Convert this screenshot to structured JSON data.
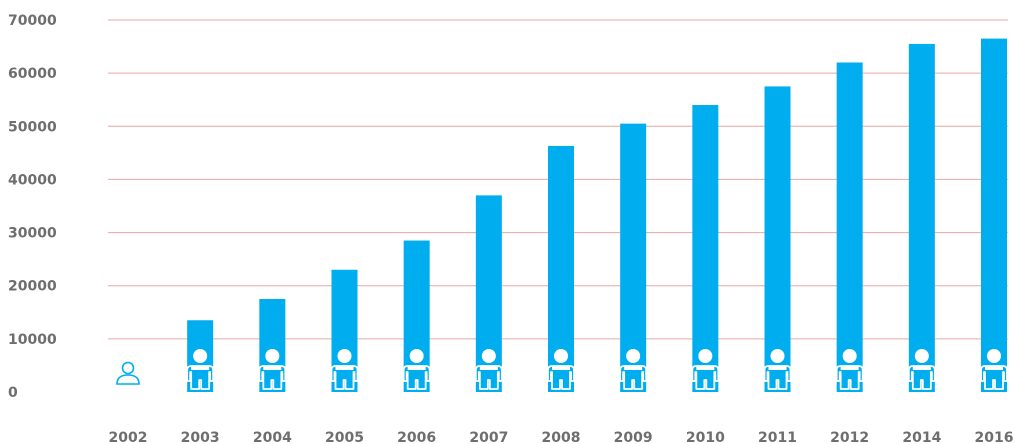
{
  "chart_data": {
    "type": "bar",
    "categories": [
      "2002",
      "2003",
      "2004",
      "2005",
      "2006",
      "2007",
      "2008",
      "2009",
      "2010",
      "2011",
      "2012",
      "2014",
      "2016"
    ],
    "values": [
      0,
      13500,
      17500,
      23000,
      28500,
      37000,
      46300,
      50500,
      54000,
      57500,
      62000,
      65500,
      66500
    ],
    "ylim": [
      0,
      70000
    ],
    "yticks": [
      0,
      10000,
      20000,
      30000,
      40000,
      50000,
      60000,
      70000
    ],
    "ytick_labels": [
      "0",
      "10000",
      "20000",
      "30000",
      "40000",
      "50000",
      "60000",
      "70000"
    ],
    "grid": true,
    "legend": "none",
    "colors": {
      "bar": "#00adee",
      "grid": "#e6a8a1",
      "tick_text": "#6e6e6e",
      "person_outline": "#00adee",
      "person_fill": "#ffffff"
    },
    "icons": {
      "bar_marker": "person-icon",
      "empty_marker": "person-outline-icon"
    }
  }
}
